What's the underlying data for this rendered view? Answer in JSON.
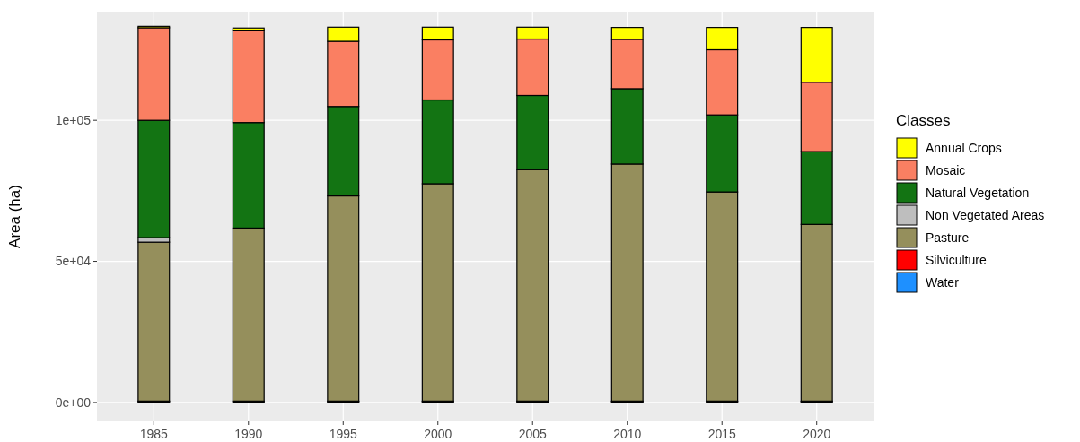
{
  "chart_data": {
    "type": "bar",
    "stacked": true,
    "ylabel": "Area (ha)",
    "legend_title": "Classes",
    "legend": "right",
    "grid": true,
    "categories": [
      "1985",
      "1990",
      "1995",
      "2000",
      "2005",
      "2010",
      "2015",
      "2020"
    ],
    "ylim": [
      -6700,
      138500
    ],
    "yticks": [
      {
        "value": 0,
        "label": "0e+00"
      },
      {
        "value": 50000,
        "label": "5e+04"
      },
      {
        "value": 100000,
        "label": "1e+05"
      }
    ],
    "series": [
      {
        "name": "Water",
        "color": "#1e90ff",
        "values": [
          300,
          300,
          300,
          300,
          300,
          300,
          300,
          300
        ]
      },
      {
        "name": "Silviculture",
        "color": "#ff0000",
        "values": [
          200,
          200,
          200,
          200,
          200,
          200,
          200,
          200
        ]
      },
      {
        "name": "Pasture",
        "color": "#958f5c",
        "values": [
          56300,
          61300,
          72700,
          77000,
          82000,
          84000,
          74100,
          62600
        ]
      },
      {
        "name": "Non Vegetated Areas",
        "color": "#bebebe",
        "values": [
          1600,
          null,
          null,
          null,
          null,
          null,
          null,
          null
        ]
      },
      {
        "name": "Natural Vegetation",
        "color": "#137413",
        "values": [
          41600,
          37400,
          31700,
          29700,
          26300,
          26700,
          27300,
          25800
        ]
      },
      {
        "name": "Mosaic",
        "color": "#fa7f62",
        "values": [
          32800,
          32500,
          23100,
          21300,
          20000,
          17500,
          23100,
          24600
        ]
      },
      {
        "name": "Annual Crops",
        "color": "#ffff00",
        "values": [
          500,
          1000,
          5000,
          4500,
          4200,
          4200,
          7900,
          19400
        ]
      }
    ]
  }
}
